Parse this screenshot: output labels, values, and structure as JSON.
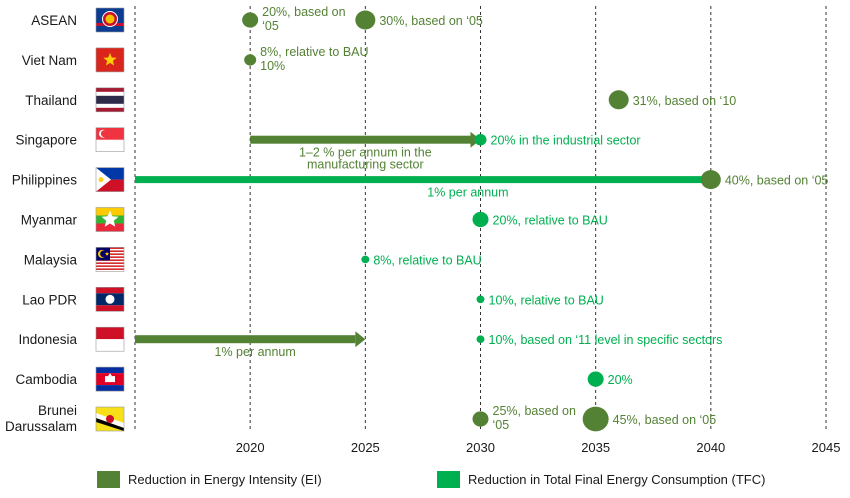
{
  "colors": {
    "ei": "#548235",
    "tfc": "#00b050",
    "grid": "#333333",
    "text": "#1a1a1a"
  },
  "chart_data": {
    "type": "timeline",
    "title": "",
    "xlabel": "",
    "ylabel": "",
    "x_ticks": [
      2020,
      2025,
      2030,
      2035,
      2040,
      2045
    ],
    "xlim": [
      2015,
      2045
    ],
    "grid": "vertical dashed",
    "legend_placement": "bottom",
    "legend": [
      {
        "key": "ei",
        "label": "Reduction in Energy Intensity (EI)"
      },
      {
        "key": "tfc",
        "label": "Reduction in Total Final Energy Consumption (TFC)"
      }
    ],
    "countries": [
      {
        "name": "ASEAN",
        "flag": "asean",
        "markers": [
          {
            "year": 2020,
            "series": "ei",
            "size": "medium",
            "label": "20%, based on\n‘05"
          },
          {
            "year": 2025,
            "series": "ei",
            "size": "large",
            "label": "30%, based on ‘05"
          }
        ],
        "ranges": []
      },
      {
        "name": "Viet Nam",
        "flag": "vietnam",
        "markers": [
          {
            "year": 2020,
            "series": "ei",
            "size": "small",
            "label": "8%, relative to BAU\n10%"
          }
        ],
        "ranges": []
      },
      {
        "name": "Thailand",
        "flag": "thailand",
        "markers": [
          {
            "year": 2036,
            "series": "ei",
            "size": "large",
            "label": "31%, based on ‘10"
          }
        ],
        "ranges": []
      },
      {
        "name": "Singapore",
        "flag": "singapore",
        "markers": [
          {
            "year": 2030,
            "series": "tfc",
            "size": "small",
            "label": "20% in the industrial sector"
          }
        ],
        "ranges": [
          {
            "from": 2020,
            "to": 2030,
            "series": "ei",
            "label": "1–2 % per annum in  the\nmanufacturing sector"
          }
        ]
      },
      {
        "name": "Philippines",
        "flag": "philippines",
        "markers": [
          {
            "year": 2040,
            "series": "ei",
            "size": "large",
            "label": "40%, based on ‘05"
          }
        ],
        "ranges": [
          {
            "from": 2015,
            "to": 2040,
            "series": "tfc",
            "label": "1% per annum"
          }
        ]
      },
      {
        "name": "Myanmar",
        "flag": "myanmar",
        "markers": [
          {
            "year": 2030,
            "series": "tfc",
            "size": "medium",
            "label": "20%, relative to BAU"
          }
        ],
        "ranges": []
      },
      {
        "name": "Malaysia",
        "flag": "malaysia",
        "markers": [
          {
            "year": 2025,
            "series": "tfc",
            "size": "tiny",
            "label": "8%, relative to BAU"
          }
        ],
        "ranges": []
      },
      {
        "name": "Lao PDR",
        "flag": "laos",
        "markers": [
          {
            "year": 2030,
            "series": "tfc",
            "size": "tiny",
            "label": "10%, relative to BAU"
          }
        ],
        "ranges": []
      },
      {
        "name": "Indonesia",
        "flag": "indonesia",
        "markers": [
          {
            "year": 2030,
            "series": "tfc",
            "size": "tiny",
            "label": "10%, based on ‘11 level in specific sectors"
          }
        ],
        "ranges": [
          {
            "from": 2015,
            "to": 2025,
            "series": "ei",
            "label": "1% per annum"
          }
        ]
      },
      {
        "name": "Cambodia",
        "flag": "cambodia",
        "markers": [
          {
            "year": 2035,
            "series": "tfc",
            "size": "medium",
            "label": "20%"
          }
        ],
        "ranges": []
      },
      {
        "name": "Brunei\nDarussalam",
        "flag": "brunei",
        "markers": [
          {
            "year": 2030,
            "series": "ei",
            "size": "medium",
            "label": "25%, based on\n‘05"
          },
          {
            "year": 2035,
            "series": "ei",
            "size": "xlarge",
            "label": "45%, based on ‘05"
          }
        ],
        "ranges": []
      }
    ]
  }
}
